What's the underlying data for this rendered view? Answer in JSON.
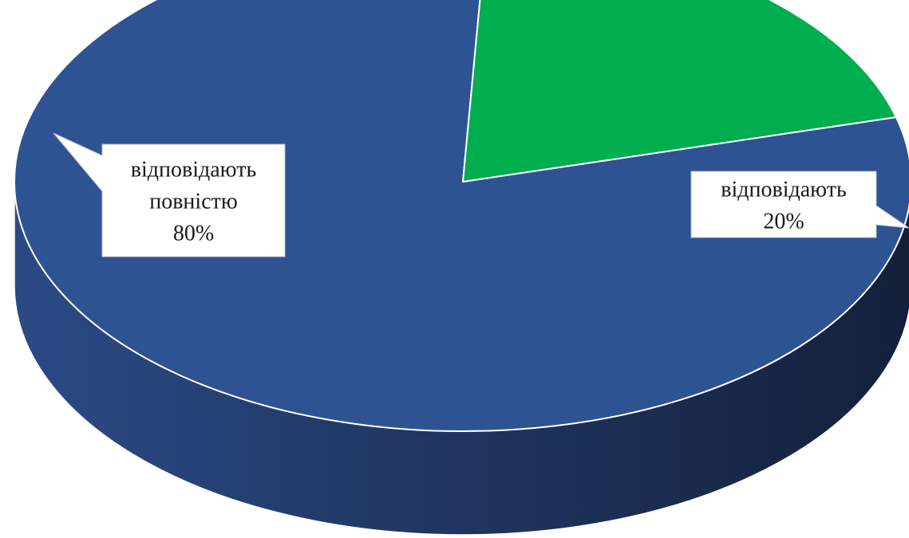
{
  "chart_data": {
    "type": "pie",
    "style": "3d",
    "start_angle_deg": -15,
    "title": "",
    "slices": [
      {
        "label": "відповідають повністю",
        "value": 80,
        "percent_label": "80%",
        "color": "#2e5393",
        "side_color_dark": "#14203a",
        "side_color_light": "#2b4a85"
      },
      {
        "label": "відповідають",
        "value": 20,
        "percent_label": "20%",
        "color": "#00ad4f",
        "side_color_dark": "#002e14",
        "side_color_light": "#01542a"
      }
    ],
    "legend": "none",
    "data_labels": "callouts"
  },
  "callouts": [
    {
      "lines": [
        "відповідають",
        "повністю",
        "80%"
      ]
    },
    {
      "lines": [
        "відповідають",
        "20%"
      ]
    }
  ]
}
